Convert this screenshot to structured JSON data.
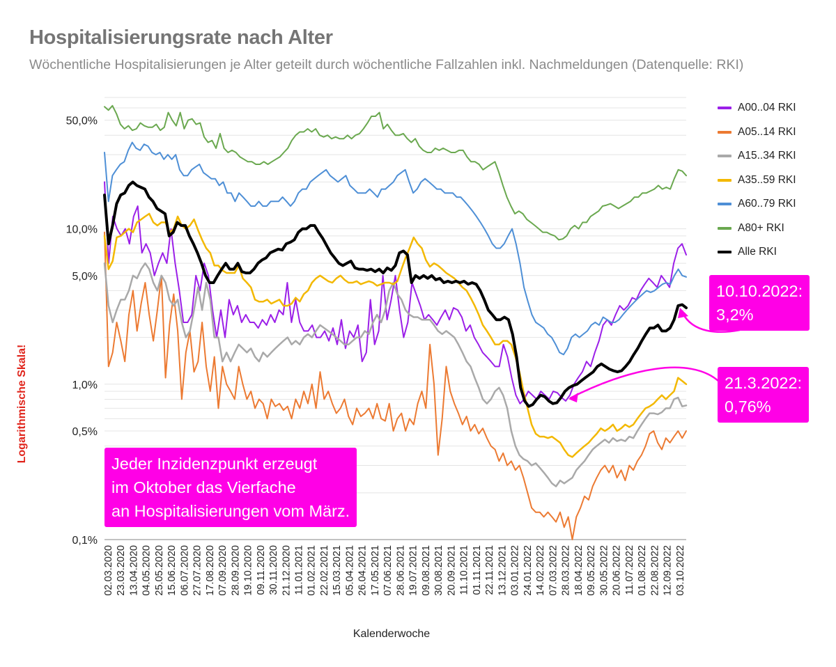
{
  "chart_data": {
    "type": "line",
    "title": "Hospitalisierungsrate nach Alter",
    "subtitle": "Wöchentliche Hospitalisierungen je Alter geteilt durch wöchentliche Fallzahlen inkl. Nachmeldungen (Datenquelle: RKI)",
    "xlabel": "Kalenderwoche",
    "ylabel": "Logarithmische Skala!",
    "y_scale": "log",
    "ylim": [
      0.1,
      70
    ],
    "y_ticks": [
      {
        "value": 0.1,
        "label": "0,1%"
      },
      {
        "value": 0.5,
        "label": "0,5%"
      },
      {
        "value": 1,
        "label": "1,0%"
      },
      {
        "value": 5,
        "label": "5,0%"
      },
      {
        "value": 10,
        "label": "10,0%"
      },
      {
        "value": 50,
        "label": "50,0%"
      }
    ],
    "x_tick_labels": [
      "02.03.2020",
      "23.03.2020",
      "13.04.2020",
      "04.05.2020",
      "25.05.2020",
      "15.06.2020",
      "06.07.2020",
      "27.07.2020",
      "17.08.2020",
      "07.09.2020",
      "28.09.2020",
      "19.10.2020",
      "09.11.2020",
      "30.11.2020",
      "21.12.2020",
      "11.01.2021",
      "01.02.2021",
      "22.02.2021",
      "15.03.2021",
      "05.04.2021",
      "26.04.2021",
      "17.05.2021",
      "07.06.2021",
      "28.06.2021",
      "19.07.2021",
      "09.08.2021",
      "30.08.2021",
      "20.09.2021",
      "11.10.2021",
      "01.11.2021",
      "22.11.2021",
      "13.12.2021",
      "03.01.2022",
      "24.01.2022",
      "14.02.2022",
      "07.03.2022",
      "28.03.2022",
      "18.04.2022",
      "09.05.2022",
      "30.05.2022",
      "20.06.2022",
      "11.07.2022",
      "01.08.2022",
      "22.08.2022",
      "12.09.2022",
      "03.10.2022"
    ],
    "grid": true,
    "legend_position": "right",
    "series": [
      {
        "name": "A00..04 RKI",
        "color": "#9b1fe8",
        "width": 2,
        "values": [
          20,
          6,
          12,
          10,
          9,
          10,
          8,
          12,
          14,
          7,
          8,
          7,
          5,
          6,
          7,
          6,
          10,
          6,
          4,
          2.5,
          2.5,
          2.8,
          5,
          4,
          6,
          5,
          3,
          2,
          3,
          2,
          3.5,
          2.8,
          3.2,
          2.5,
          2.8,
          2.5,
          2.5,
          2.3,
          2.6,
          2.4,
          2.8,
          2.5,
          3,
          2.8,
          4.5,
          2.5,
          3.5,
          2.5,
          2.2,
          2.2,
          2.4,
          2,
          2,
          2.2,
          1.9,
          2.3,
          1.8,
          2.6,
          1.7,
          2.2,
          2,
          2.4,
          1.4,
          1.6,
          3.5,
          1.8,
          2.2,
          5,
          2.6,
          3.5,
          5,
          3,
          2,
          2.5,
          4.5,
          3.8,
          3.2,
          2.6,
          2.8,
          2.6,
          2.4,
          2.7,
          3,
          2.6,
          3.1,
          3,
          2.7,
          2.2,
          2.4,
          2,
          1.8,
          1.6,
          1.5,
          1.4,
          1.3,
          1.3,
          1.8,
          1.5,
          1.1,
          0.85,
          0.75,
          0.8,
          0.9,
          0.85,
          0.8,
          0.9,
          0.85,
          0.8,
          0.9,
          0.88,
          0.82,
          0.78,
          0.85,
          1,
          1.1,
          1.2,
          1.4,
          1.3,
          1.6,
          1.9,
          2.4,
          2.6,
          2.4,
          2.8,
          3.2,
          3,
          3.2,
          3.6,
          3.5,
          4,
          4.4,
          4.8,
          4.5,
          4.2,
          5,
          4.6,
          4.2,
          6,
          7.5,
          8,
          6.8
        ]
      },
      {
        "name": "A05..14 RKI",
        "color": "#ec7a32",
        "width": 2,
        "values": [
          9.5,
          1.3,
          1.6,
          2.5,
          1.9,
          1.4,
          2.8,
          4,
          2.2,
          3.3,
          4.5,
          2.8,
          1.9,
          3,
          5,
          1.1,
          2.4,
          3.8,
          2.2,
          0.8,
          1.6,
          2.2,
          1.2,
          1.4,
          2.5,
          1.3,
          0.9,
          1.5,
          0.7,
          1.3,
          1,
          0.9,
          0.8,
          1.3,
          1,
          0.8,
          0.9,
          0.7,
          0.8,
          0.75,
          0.6,
          0.8,
          0.72,
          0.75,
          0.68,
          0.72,
          0.6,
          0.8,
          0.7,
          0.9,
          0.75,
          1,
          0.7,
          1.2,
          0.8,
          0.9,
          0.75,
          0.65,
          0.7,
          0.8,
          0.62,
          0.55,
          0.7,
          0.62,
          0.65,
          0.7,
          0.6,
          0.75,
          0.6,
          0.58,
          0.75,
          0.5,
          0.6,
          0.65,
          0.5,
          0.6,
          0.55,
          0.75,
          0.9,
          0.7,
          1.8,
          1,
          0.35,
          0.6,
          1.3,
          0.9,
          0.75,
          0.65,
          0.55,
          0.62,
          0.5,
          0.55,
          0.48,
          0.52,
          0.45,
          0.4,
          0.38,
          0.32,
          0.36,
          0.3,
          0.32,
          0.28,
          0.3,
          0.25,
          0.2,
          0.16,
          0.15,
          0.15,
          0.14,
          0.15,
          0.14,
          0.13,
          0.15,
          0.12,
          0.14,
          0.1,
          0.14,
          0.16,
          0.19,
          0.18,
          0.22,
          0.25,
          0.28,
          0.3,
          0.27,
          0.3,
          0.25,
          0.28,
          0.24,
          0.3,
          0.28,
          0.32,
          0.35,
          0.4,
          0.48,
          0.5,
          0.42,
          0.38,
          0.45,
          0.42,
          0.46,
          0.5,
          0.45,
          0.5
        ]
      },
      {
        "name": "A15..34 RKI",
        "color": "#a9a9a9",
        "width": 2.5,
        "values": [
          6,
          3.2,
          2.5,
          3,
          3.5,
          3.5,
          4,
          5,
          4.8,
          5.5,
          6,
          5.5,
          4.5,
          4,
          5,
          4.5,
          3.5,
          3.2,
          3.5,
          2.5,
          2,
          2.2,
          3,
          4.2,
          3,
          4.5,
          3.5,
          2,
          2,
          1.4,
          1.6,
          1.4,
          1.6,
          1.8,
          1.7,
          1.6,
          1.7,
          1.5,
          1.4,
          1.6,
          1.5,
          1.6,
          1.7,
          1.8,
          1.9,
          2,
          1.8,
          1.9,
          1.8,
          2,
          2.1,
          2,
          2.2,
          2.4,
          2.3,
          2.2,
          2.1,
          2,
          1.9,
          1.8,
          1.8,
          1.9,
          2,
          2,
          2.2,
          2.1,
          2.5,
          2.8,
          2.5,
          3,
          4,
          4.5,
          3.8,
          3.5,
          3,
          2.8,
          2.7,
          2.7,
          2.6,
          2.6,
          2.6,
          2.4,
          2.2,
          2.1,
          2.2,
          2.1,
          2,
          1.8,
          1.6,
          1.4,
          1.3,
          1.1,
          0.95,
          0.8,
          0.75,
          0.8,
          0.9,
          0.95,
          0.85,
          0.7,
          0.5,
          0.4,
          0.35,
          0.33,
          0.32,
          0.3,
          0.31,
          0.29,
          0.27,
          0.25,
          0.23,
          0.22,
          0.24,
          0.23,
          0.24,
          0.25,
          0.28,
          0.3,
          0.32,
          0.35,
          0.38,
          0.4,
          0.42,
          0.44,
          0.42,
          0.45,
          0.43,
          0.44,
          0.43,
          0.46,
          0.45,
          0.5,
          0.55,
          0.6,
          0.65,
          0.65,
          0.64,
          0.66,
          0.7,
          0.7,
          0.8,
          0.82,
          0.72,
          0.73
        ]
      },
      {
        "name": "A35..59 RKI",
        "color": "#f3b800",
        "width": 2.5,
        "values": [
          9,
          5.5,
          6.2,
          8.8,
          9,
          9.5,
          10,
          9.5,
          11,
          11.5,
          12,
          12.5,
          11,
          10.5,
          11,
          11,
          9.5,
          10,
          12,
          10.5,
          10,
          10.5,
          11.5,
          9.8,
          8.5,
          7.5,
          7,
          5.8,
          5.8,
          5.4,
          5.2,
          5.2,
          5.2,
          5.8,
          4.8,
          4.5,
          4.2,
          3.5,
          3.4,
          3.4,
          3.5,
          3.3,
          3.4,
          3.5,
          3.2,
          3.2,
          3.3,
          3.6,
          3.4,
          3.8,
          4,
          4.5,
          4.8,
          5,
          4.8,
          4.6,
          4.5,
          4.8,
          5,
          4.7,
          4.5,
          4.5,
          4.6,
          4.4,
          4.5,
          4.6,
          4.5,
          4.3,
          4.4,
          4.5,
          4.5,
          4.4,
          4.6,
          5.5,
          6.5,
          7.5,
          8.8,
          8,
          7.5,
          6.3,
          5.7,
          6,
          5.8,
          5.5,
          5.2,
          5,
          4.8,
          4.5,
          4.2,
          4,
          3.6,
          3.2,
          2.8,
          2.4,
          2.2,
          2,
          1.8,
          1.8,
          1.9,
          1.9,
          1.8,
          1.5,
          1.2,
          0.9,
          0.7,
          0.55,
          0.48,
          0.46,
          0.46,
          0.45,
          0.46,
          0.44,
          0.42,
          0.38,
          0.35,
          0.34,
          0.36,
          0.38,
          0.4,
          0.42,
          0.45,
          0.48,
          0.52,
          0.5,
          0.52,
          0.55,
          0.5,
          0.52,
          0.55,
          0.53,
          0.55,
          0.6,
          0.65,
          0.7,
          0.72,
          0.75,
          0.8,
          0.85,
          0.8,
          0.85,
          0.9,
          1.1,
          1.05,
          1.0
        ]
      },
      {
        "name": "A60..79 RKI",
        "color": "#4e8fd6",
        "width": 2,
        "values": [
          31,
          15,
          22,
          24,
          26,
          27,
          32,
          36,
          33,
          32,
          35,
          34,
          31,
          30,
          31,
          28,
          30,
          28,
          30,
          24,
          22,
          22,
          24,
          25,
          26,
          23,
          22,
          21,
          21,
          19,
          20,
          17,
          17,
          15,
          17,
          16,
          15,
          14,
          14,
          15,
          14,
          14,
          15,
          15,
          15,
          16,
          15,
          14,
          15,
          17,
          18,
          18,
          20,
          21,
          22,
          23,
          24,
          22,
          21,
          20,
          21,
          22,
          19,
          18,
          17,
          17,
          17,
          18,
          17,
          16,
          18,
          18,
          19,
          20,
          22,
          23,
          24,
          20,
          17,
          18,
          20,
          21,
          20,
          19,
          18,
          18,
          17,
          17,
          17,
          16,
          16,
          15,
          14,
          13,
          12,
          11,
          10,
          9,
          8,
          7.5,
          7.5,
          8,
          9,
          10,
          8,
          6,
          4.2,
          3.4,
          2.8,
          2.5,
          2.4,
          2.3,
          2.1,
          2,
          1.8,
          1.6,
          1.55,
          1.7,
          2,
          2.1,
          2,
          2.1,
          2.2,
          2.4,
          2.5,
          2.4,
          2.7,
          2.6,
          2.5,
          2.5,
          2.6,
          2.8,
          3,
          3.2,
          3.4,
          3.6,
          3.8,
          4,
          3.9,
          4,
          4.2,
          4.4,
          4.5,
          4.4,
          5,
          5.5,
          5,
          4.9
        ]
      },
      {
        "name": "A80+ RKI",
        "color": "#6aa84f",
        "width": 2,
        "values": [
          61,
          58,
          62,
          55,
          47,
          44,
          46,
          43,
          44,
          48,
          46,
          45,
          45,
          47,
          43,
          45,
          56,
          50,
          46,
          56,
          44,
          50,
          51,
          47,
          48,
          39,
          36,
          37,
          33,
          41,
          33,
          31,
          32,
          31,
          29,
          28,
          27,
          27,
          26,
          26,
          27,
          26,
          27,
          28,
          29,
          31,
          33,
          37,
          40,
          42,
          42,
          44,
          42,
          44,
          40,
          39,
          40,
          38,
          39,
          38,
          38,
          40,
          38,
          40,
          41,
          44,
          48,
          53,
          53,
          56,
          44,
          47,
          43,
          40,
          40,
          41,
          38,
          36,
          38,
          34,
          32,
          31,
          31,
          33,
          32,
          33,
          32,
          31,
          31,
          32,
          32,
          29,
          27,
          27,
          26,
          24,
          25,
          26,
          27,
          23,
          19,
          16,
          14,
          12.5,
          13,
          12.5,
          11.5,
          11,
          10.5,
          10,
          9.5,
          9.5,
          9.2,
          9,
          8.5,
          8.6,
          9,
          10,
          10.5,
          10,
          11,
          11,
          12,
          12.5,
          13,
          14,
          14.2,
          14.5,
          14,
          13.5,
          14,
          14.5,
          15,
          16,
          16,
          17,
          17,
          17.5,
          18,
          19,
          18,
          18.5,
          18,
          21,
          24,
          23.5,
          22
        ]
      },
      {
        "name": "Alle RKI",
        "color": "#000000",
        "width": 4,
        "values": [
          16.5,
          8,
          10.5,
          14.5,
          16.5,
          17,
          19,
          20,
          19,
          18.5,
          18,
          16,
          15,
          13.5,
          13,
          12.5,
          9,
          9.5,
          11,
          10.5,
          10.5,
          9,
          8,
          7,
          6,
          5,
          4.5,
          4.5,
          5,
          5.5,
          6,
          5.5,
          5.5,
          6,
          5.3,
          5.2,
          5.2,
          5.5,
          6,
          6.3,
          6.5,
          7,
          7.2,
          7.4,
          7.3,
          8,
          8.2,
          8.5,
          9.5,
          10,
          10,
          10.5,
          10.5,
          9.5,
          8.7,
          7.8,
          7,
          6.5,
          6,
          5.8,
          6,
          6.2,
          5.6,
          5.5,
          5.5,
          5.4,
          5.5,
          5.3,
          5.5,
          5.2,
          5.6,
          5.4,
          5.8,
          7,
          7.2,
          6.8,
          4.5,
          5,
          4.8,
          5,
          4.8,
          5,
          4.7,
          4.8,
          4.5,
          4.6,
          4.5,
          4.6,
          4.5,
          4.6,
          4.4,
          4.5,
          4.4,
          4,
          3.5,
          3,
          2.8,
          2.6,
          2.6,
          2.7,
          2.6,
          2.1,
          1.5,
          0.95,
          0.78,
          0.72,
          0.74,
          0.8,
          0.85,
          0.83,
          0.78,
          0.75,
          0.76,
          0.82,
          0.9,
          0.95,
          0.98,
          1,
          1.05,
          1.1,
          1.15,
          1.2,
          1.3,
          1.35,
          1.3,
          1.25,
          1.22,
          1.2,
          1.22,
          1.3,
          1.4,
          1.55,
          1.7,
          1.9,
          2.1,
          2.3,
          2.3,
          2.4,
          2.2,
          2.2,
          2.3,
          2.6,
          3.2,
          3.25,
          3.1
        ]
      }
    ],
    "annotations": [
      {
        "lines": [
          "Jeder Inzidenzpunkt erzeugt",
          "im Oktober das Vierfache",
          "an Hospitalisierungen vom März."
        ]
      },
      {
        "lines": [
          "10.10.2022:",
          "3,2%"
        ]
      },
      {
        "lines": [
          "21.3.2022:",
          "0,76%"
        ]
      }
    ]
  }
}
